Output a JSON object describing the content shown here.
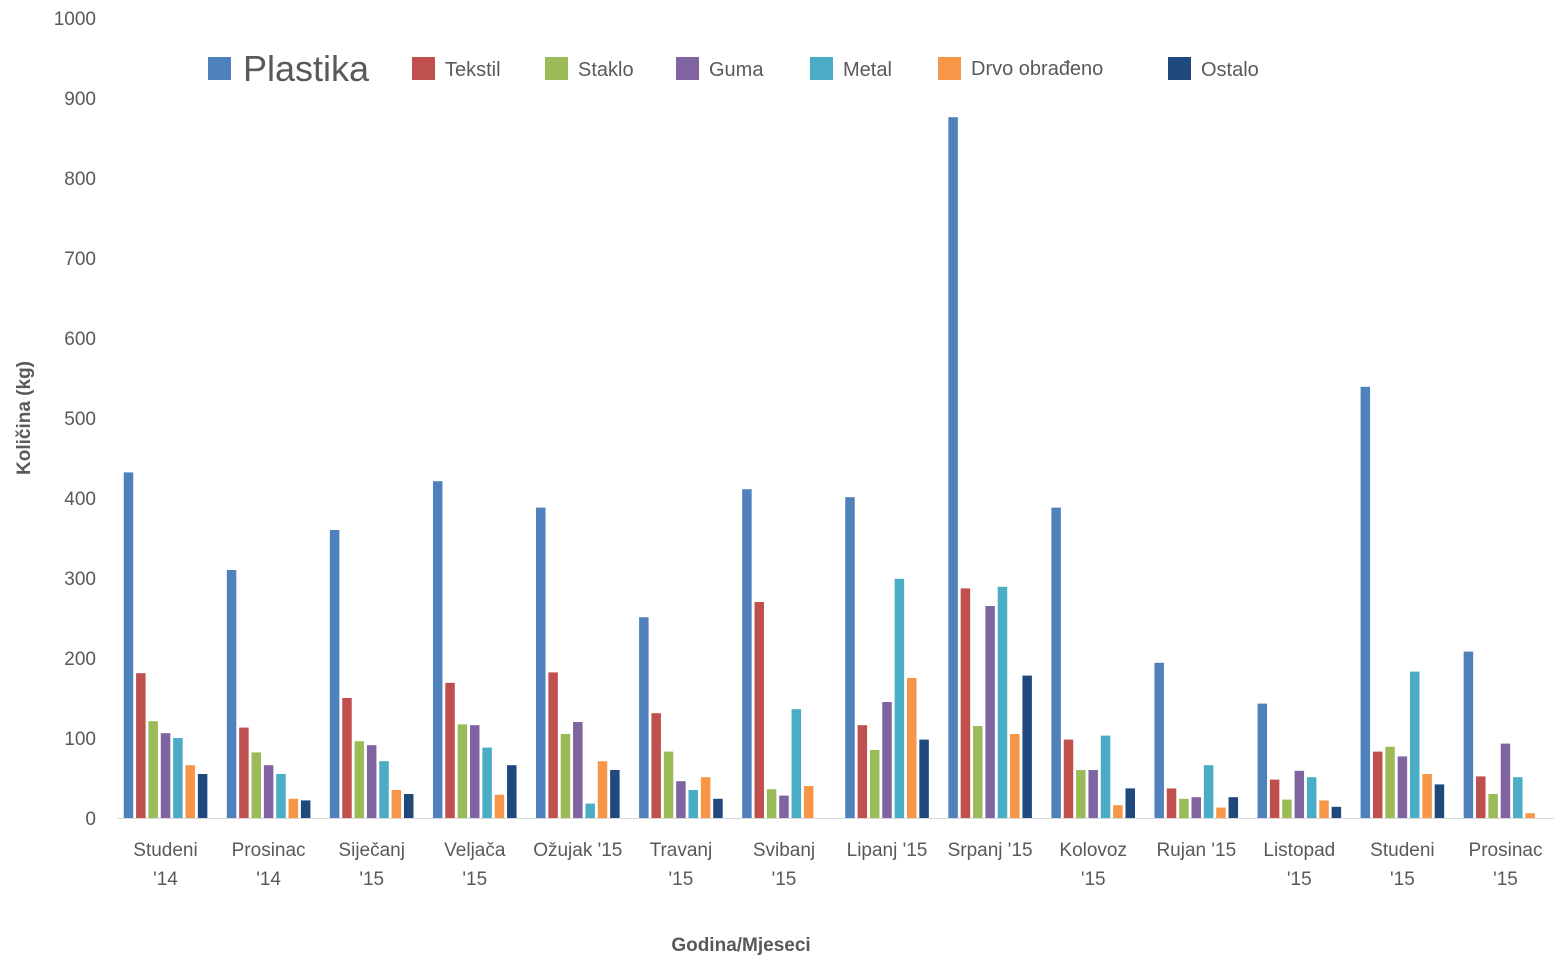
{
  "chart_data": {
    "type": "bar",
    "title": "",
    "xlabel": "Godina/Mjeseci",
    "ylabel": "Količina (kg)",
    "ylim": [
      0,
      1000
    ],
    "yticks": [
      0,
      100,
      200,
      300,
      400,
      500,
      600,
      700,
      800,
      900,
      1000
    ],
    "grid": false,
    "legend_position": "top",
    "categories": [
      [
        "Studeni",
        "'14"
      ],
      [
        "Prosinac",
        "'14"
      ],
      [
        "Siječanj",
        "'15"
      ],
      [
        "Veljača",
        "'15"
      ],
      [
        "Ožujak '15"
      ],
      [
        "Travanj",
        "'15"
      ],
      [
        "Svibanj",
        "'15"
      ],
      [
        "Lipanj '15"
      ],
      [
        "Srpanj '15"
      ],
      [
        "Kolovoz",
        "'15"
      ],
      [
        "Rujan '15"
      ],
      [
        "Listopad",
        "'15"
      ],
      [
        "Studeni",
        "'15"
      ],
      [
        "Prosinac",
        "'15"
      ]
    ],
    "series": [
      {
        "name": "Plastika",
        "color": "#4F81BD",
        "values": [
          432,
          310,
          360,
          421,
          388,
          251,
          411,
          401,
          876,
          388,
          194,
          143,
          539,
          208
        ]
      },
      {
        "name": "Tekstil",
        "color": "#C0504D",
        "values": [
          181,
          113,
          150,
          169,
          182,
          131,
          270,
          116,
          287,
          98,
          37,
          48,
          83,
          52
        ]
      },
      {
        "name": "Staklo",
        "color": "#9BBB59",
        "values": [
          121,
          82,
          96,
          117,
          105,
          83,
          36,
          85,
          115,
          60,
          24,
          23,
          89,
          30
        ]
      },
      {
        "name": "Guma",
        "color": "#8064A2",
        "values": [
          106,
          66,
          91,
          116,
          120,
          46,
          28,
          145,
          265,
          60,
          26,
          59,
          77,
          93
        ]
      },
      {
        "name": "Metal",
        "color": "#4BACC6",
        "values": [
          100,
          55,
          71,
          88,
          18,
          35,
          136,
          299,
          289,
          103,
          66,
          51,
          183,
          51
        ]
      },
      {
        "name": "Drvo obrađeno",
        "color": "#F79646",
        "values": [
          66,
          24,
          35,
          29,
          71,
          51,
          40,
          175,
          105,
          16,
          13,
          22,
          55,
          6
        ]
      },
      {
        "name": "Ostalo",
        "color": "#1F497D",
        "values": [
          55,
          22,
          30,
          66,
          60,
          24,
          0,
          98,
          178,
          37,
          26,
          14,
          42,
          0
        ]
      }
    ]
  }
}
